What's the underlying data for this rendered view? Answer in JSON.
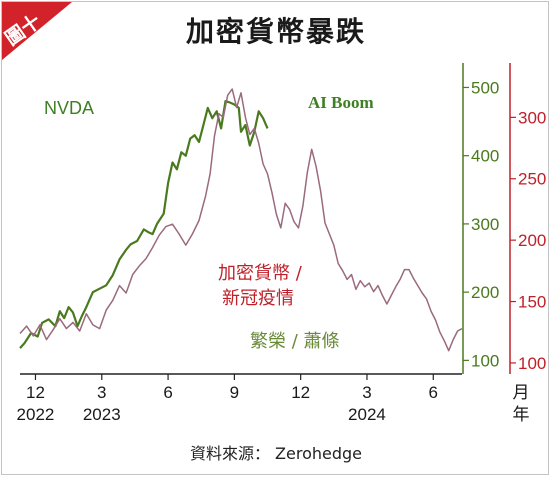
{
  "figure_label": "圖十",
  "title": "加密貨幣暴跌",
  "source": "資料來源： Zerohedge",
  "colors": {
    "nvda": "#4a7a1e",
    "crypto": "#9a6a7e",
    "left_axis": "#4a7a1e",
    "right_axis": "#c0202a",
    "corner": "#d2232a",
    "nvda_label": "#3f7f24",
    "crypto_label": "#c0202a",
    "phase_label": "#6a8a3a"
  },
  "chart_data": {
    "type": "line",
    "title": "加密貨幣暴跌",
    "xlabel": "月\n年",
    "x_ticks": [
      {
        "month": "12",
        "year": "2022",
        "t": 0
      },
      {
        "month": "3",
        "year": "2023",
        "t": 3
      },
      {
        "month": "6",
        "year": "",
        "t": 6
      },
      {
        "month": "9",
        "year": "",
        "t": 9
      },
      {
        "month": "12",
        "year": "",
        "t": 12
      },
      {
        "month": "3",
        "year": "2024",
        "t": 15
      },
      {
        "month": "6",
        "year": "",
        "t": 18
      }
    ],
    "xlim": [
      -0.7,
      19.3
    ],
    "left_axis": {
      "ticks": [
        100,
        200,
        300,
        400,
        500
      ],
      "ylim": [
        80,
        530
      ]
    },
    "right_axis": {
      "ticks": [
        100,
        150,
        200,
        250,
        300
      ],
      "ylim": [
        91,
        341
      ]
    },
    "series": [
      {
        "name": "NVDA",
        "axis": "left",
        "points": [
          [
            -0.7,
            118
          ],
          [
            -0.5,
            125
          ],
          [
            -0.2,
            140
          ],
          [
            0.1,
            135
          ],
          [
            0.3,
            155
          ],
          [
            0.6,
            160
          ],
          [
            0.9,
            150
          ],
          [
            1.1,
            172
          ],
          [
            1.3,
            162
          ],
          [
            1.5,
            178
          ],
          [
            1.7,
            170
          ],
          [
            1.9,
            150
          ],
          [
            2.1,
            165
          ],
          [
            2.3,
            178
          ],
          [
            2.6,
            200
          ],
          [
            2.9,
            205
          ],
          [
            3.2,
            210
          ],
          [
            3.5,
            225
          ],
          [
            3.8,
            248
          ],
          [
            4.1,
            262
          ],
          [
            4.3,
            270
          ],
          [
            4.6,
            275
          ],
          [
            4.9,
            292
          ],
          [
            5.1,
            288
          ],
          [
            5.3,
            285
          ],
          [
            5.5,
            300
          ],
          [
            5.8,
            315
          ],
          [
            6.0,
            360
          ],
          [
            6.2,
            390
          ],
          [
            6.4,
            380
          ],
          [
            6.6,
            405
          ],
          [
            6.8,
            400
          ],
          [
            7.0,
            425
          ],
          [
            7.2,
            430
          ],
          [
            7.4,
            420
          ],
          [
            7.6,
            445
          ],
          [
            7.8,
            470
          ],
          [
            8.0,
            455
          ],
          [
            8.2,
            465
          ],
          [
            8.4,
            440
          ],
          [
            8.6,
            480
          ],
          [
            8.8,
            478
          ],
          [
            9.0,
            475
          ],
          [
            9.2,
            470
          ],
          [
            9.3,
            435
          ],
          [
            9.5,
            445
          ],
          [
            9.7,
            415
          ],
          [
            9.9,
            435
          ],
          [
            10.1,
            465
          ],
          [
            10.3,
            455
          ],
          [
            10.5,
            440
          ]
        ]
      },
      {
        "name": "加密貨幣 / 新冠疫情",
        "axis": "right",
        "points": [
          [
            -0.7,
            124
          ],
          [
            -0.4,
            130
          ],
          [
            -0.1,
            122
          ],
          [
            0.2,
            131
          ],
          [
            0.5,
            119
          ],
          [
            0.8,
            127
          ],
          [
            1.1,
            136
          ],
          [
            1.4,
            128
          ],
          [
            1.7,
            133
          ],
          [
            2.0,
            126
          ],
          [
            2.3,
            140
          ],
          [
            2.6,
            131
          ],
          [
            2.9,
            128
          ],
          [
            3.2,
            143
          ],
          [
            3.5,
            151
          ],
          [
            3.8,
            163
          ],
          [
            4.1,
            157
          ],
          [
            4.4,
            172
          ],
          [
            4.7,
            179
          ],
          [
            5.0,
            185
          ],
          [
            5.3,
            194
          ],
          [
            5.6,
            204
          ],
          [
            5.9,
            211
          ],
          [
            6.2,
            213
          ],
          [
            6.5,
            205
          ],
          [
            6.8,
            196
          ],
          [
            7.1,
            205
          ],
          [
            7.4,
            216
          ],
          [
            7.7,
            236
          ],
          [
            7.9,
            254
          ],
          [
            8.1,
            285
          ],
          [
            8.3,
            303
          ],
          [
            8.5,
            300
          ],
          [
            8.7,
            318
          ],
          [
            8.9,
            323
          ],
          [
            9.1,
            308
          ],
          [
            9.3,
            320
          ],
          [
            9.5,
            300
          ],
          [
            9.7,
            286
          ],
          [
            9.9,
            291
          ],
          [
            10.1,
            279
          ],
          [
            10.3,
            262
          ],
          [
            10.5,
            254
          ],
          [
            10.7,
            239
          ],
          [
            10.9,
            221
          ],
          [
            11.1,
            210
          ],
          [
            11.3,
            230
          ],
          [
            11.5,
            225
          ],
          [
            11.7,
            215
          ],
          [
            11.9,
            210
          ],
          [
            12.1,
            228
          ],
          [
            12.3,
            255
          ],
          [
            12.5,
            274
          ],
          [
            12.7,
            260
          ],
          [
            12.9,
            240
          ],
          [
            13.1,
            214
          ],
          [
            13.3,
            205
          ],
          [
            13.5,
            196
          ],
          [
            13.7,
            181
          ],
          [
            13.9,
            175
          ],
          [
            14.1,
            168
          ],
          [
            14.3,
            172
          ],
          [
            14.5,
            160
          ],
          [
            14.7,
            167
          ],
          [
            14.9,
            162
          ],
          [
            15.1,
            165
          ],
          [
            15.3,
            158
          ],
          [
            15.5,
            163
          ],
          [
            15.7,
            155
          ],
          [
            15.9,
            148
          ],
          [
            16.1,
            155
          ],
          [
            16.3,
            162
          ],
          [
            16.5,
            168
          ],
          [
            16.7,
            176
          ],
          [
            16.9,
            176
          ],
          [
            17.1,
            169
          ],
          [
            17.3,
            163
          ],
          [
            17.5,
            157
          ],
          [
            17.7,
            152
          ],
          [
            17.9,
            142
          ],
          [
            18.1,
            135
          ],
          [
            18.3,
            125
          ],
          [
            18.5,
            118
          ],
          [
            18.7,
            110
          ],
          [
            18.9,
            119
          ],
          [
            19.1,
            126
          ],
          [
            19.3,
            128
          ]
        ]
      }
    ],
    "annotations": {
      "nvda_label": "NVDA",
      "ai_boom": "AI Boom",
      "crypto_line1": "加密貨幣 /",
      "crypto_line2": "新冠疫情",
      "boom_bust": "繁榮 / 蕭條"
    }
  }
}
